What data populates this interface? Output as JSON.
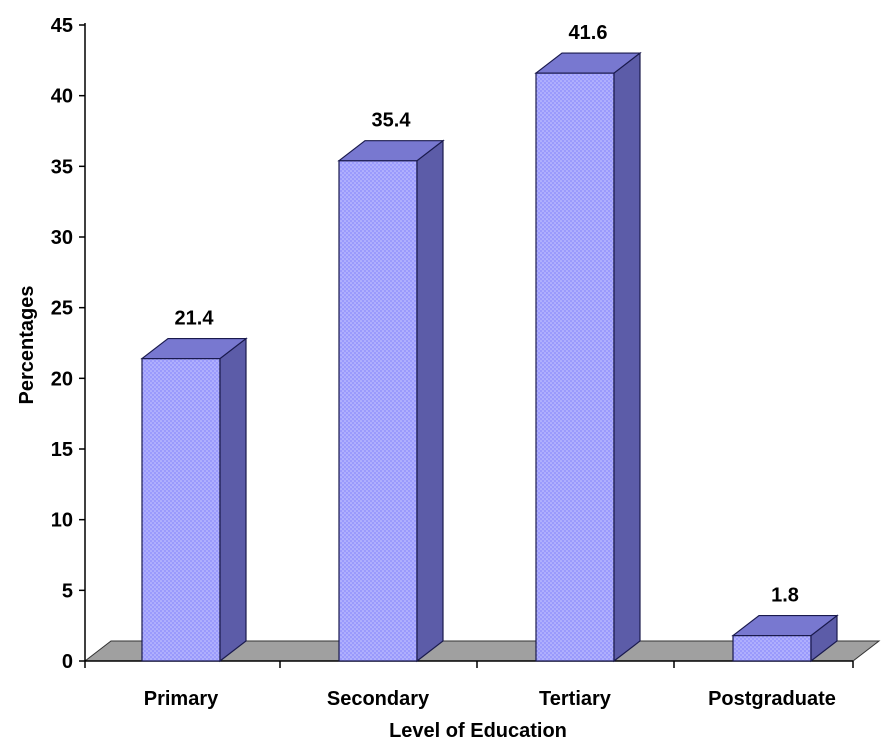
{
  "chart_data": {
    "type": "bar",
    "style": "3d-column",
    "categories": [
      "Primary",
      "Secondary",
      "Tertiary",
      "Postgraduate"
    ],
    "values": [
      21.4,
      35.4,
      41.6,
      1.8
    ],
    "data_labels": [
      "21.4",
      "35.4",
      "41.6",
      "1.8"
    ],
    "title": "",
    "xlabel": "Level of Education",
    "ylabel": "Percentages",
    "ylim": [
      0,
      45
    ],
    "yticks": [
      "0",
      "5",
      "10",
      "15",
      "20",
      "25",
      "30",
      "35",
      "40",
      "45"
    ],
    "grid": false,
    "legend": "none",
    "colors": {
      "bar_front": "#9999ff",
      "bar_side": "#5c5ca8",
      "bar_top": "#7878d0",
      "bar_outline": "#1a1a4d",
      "floor": "#a0a0a0",
      "axis": "#000000"
    }
  }
}
